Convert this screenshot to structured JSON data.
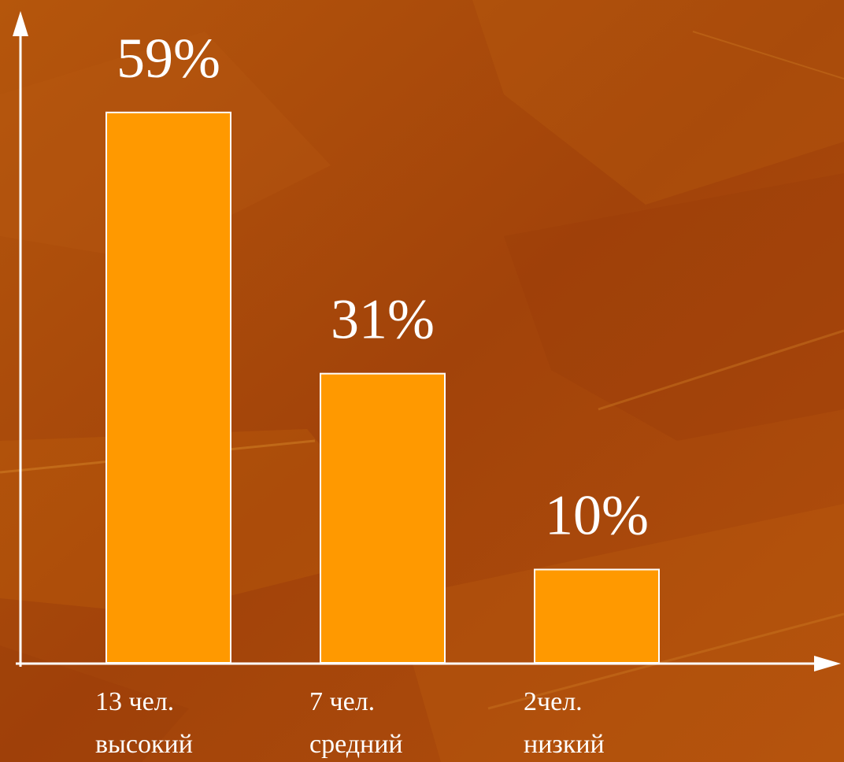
{
  "chart_data": {
    "type": "bar",
    "categories": [
      {
        "count": "13 чел.",
        "level": "высокий"
      },
      {
        "count": "7 чел.",
        "level": "средний"
      },
      {
        "count": "2чел.",
        "level": "низкий"
      }
    ],
    "values": [
      59,
      31,
      10
    ],
    "data_labels": [
      "59%",
      "31%",
      "10%"
    ],
    "ylim": [
      0,
      100
    ],
    "grid": false,
    "legend": "none",
    "colors": {
      "bar": "#ff9900",
      "bar_border": "#ffffff",
      "axis": "#ffffff",
      "text": "#ffffff",
      "background": "#a84a08"
    }
  }
}
